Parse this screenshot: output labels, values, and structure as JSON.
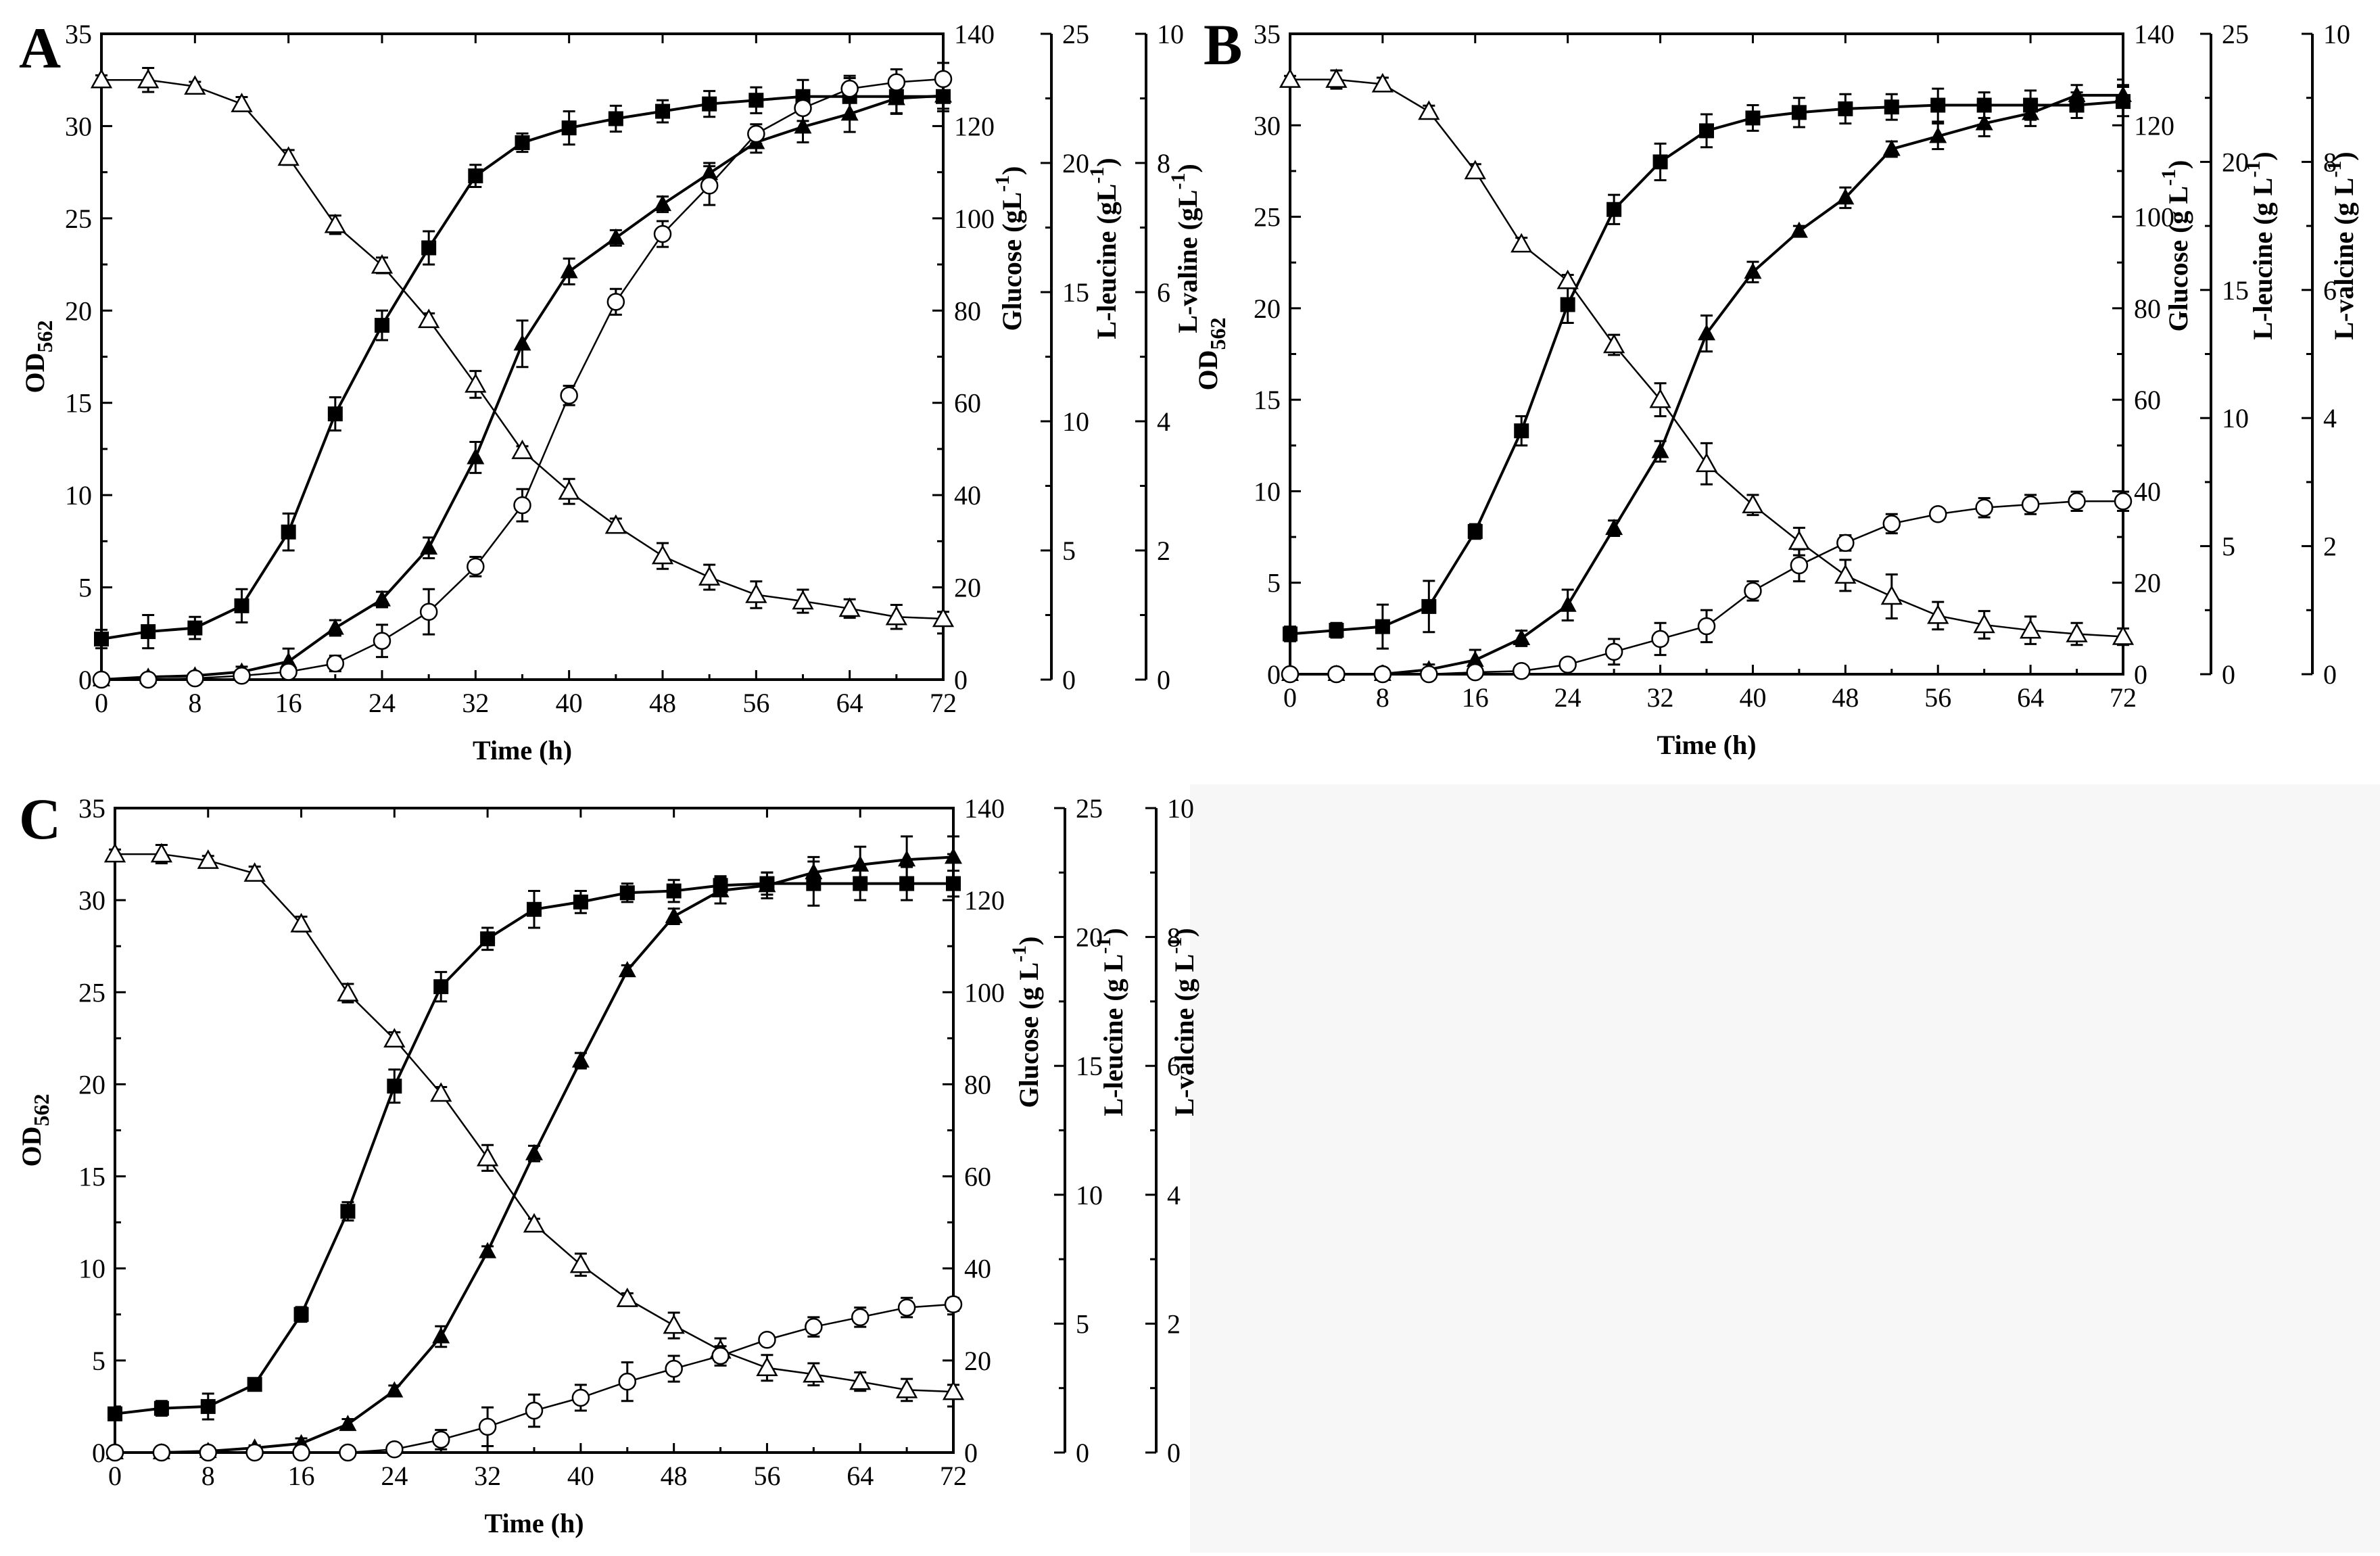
{
  "figure": {
    "empty_panel_color": "#f7f7f7",
    "marker_legend": {
      "od562": "filled-square",
      "glucose": "open-triangle",
      "leucine": "filled-triangle",
      "valine": "open-circle"
    }
  },
  "chart_data": [
    {
      "type": "line",
      "panel": "A",
      "x": [
        0,
        4,
        8,
        12,
        16,
        20,
        24,
        28,
        32,
        36,
        40,
        44,
        48,
        52,
        56,
        60,
        64,
        68,
        72
      ],
      "xlabel": "Time (h)",
      "xlim": [
        0,
        72
      ],
      "xticks": [
        "0",
        "8",
        "16",
        "24",
        "32",
        "40",
        "48",
        "56",
        "64",
        "72"
      ],
      "axes": [
        {
          "id": "od",
          "label": "OD",
          "label_sub": "562",
          "lim": [
            0,
            35
          ],
          "ticks": [
            "0",
            "5",
            "10",
            "15",
            "20",
            "25",
            "30",
            "35"
          ]
        },
        {
          "id": "glucose",
          "label": "Glucose (gL",
          "label_sup": "-1",
          "label_end": ")",
          "lim": [
            0,
            140
          ],
          "ticks": [
            "0",
            "20",
            "40",
            "60",
            "80",
            "100",
            "120",
            "140"
          ]
        },
        {
          "id": "leucine",
          "label": "L-leucine (gL",
          "label_sup": "-1",
          "label_end": ")",
          "lim": [
            0,
            25
          ],
          "ticks": [
            "0",
            "5",
            "10",
            "15",
            "20",
            "25"
          ]
        },
        {
          "id": "valine",
          "label": "L-valine (gL",
          "label_sup": "-1",
          "label_end": ")",
          "lim": [
            0,
            10
          ],
          "ticks": [
            "0",
            "2",
            "4",
            "6",
            "8",
            "10"
          ]
        }
      ],
      "series": [
        {
          "name": "OD562",
          "axis": "od",
          "marker": "filled-square",
          "values": [
            2.2,
            2.6,
            2.8,
            4.0,
            8.0,
            14.4,
            19.2,
            23.4,
            27.3,
            29.1,
            29.9,
            30.4,
            30.8,
            31.2,
            31.4,
            31.6,
            31.6,
            31.6,
            31.6
          ],
          "errors": [
            0.5,
            0.9,
            0.6,
            0.9,
            1.0,
            0.9,
            0.8,
            0.9,
            0.6,
            0.5,
            0.9,
            0.7,
            0.6,
            0.7,
            0.7,
            0.9,
            1.0,
            0.9,
            0.8
          ]
        },
        {
          "name": "Glucose",
          "axis": "glucose",
          "marker": "open-triangle",
          "values": [
            130.0,
            130.0,
            128.6,
            124.8,
            113.2,
            98.6,
            89.8,
            78.0,
            64.0,
            49.6,
            40.8,
            33.4,
            26.8,
            22.2,
            18.4,
            17.0,
            15.4,
            13.6,
            13.2
          ],
          "errors": [
            1.0,
            2.6,
            1.0,
            1.5,
            1.6,
            2.0,
            1.7,
            1.4,
            2.9,
            1.0,
            2.7,
            1.5,
            2.8,
            2.7,
            2.9,
            2.5,
            2.0,
            2.6,
            1.5
          ]
        },
        {
          "name": "L-leucine",
          "axis": "leucine",
          "marker": "filled-triangle",
          "values": [
            0.0,
            0.1,
            0.15,
            0.3,
            0.7,
            2.0,
            3.1,
            5.1,
            8.6,
            13.0,
            15.8,
            17.1,
            18.4,
            19.6,
            20.8,
            21.4,
            21.9,
            22.5,
            22.6
          ],
          "errors": [
            0.05,
            0.05,
            0.1,
            0.2,
            0.5,
            0.3,
            0.3,
            0.4,
            0.6,
            0.9,
            0.5,
            0.3,
            0.3,
            0.4,
            0.4,
            0.6,
            0.7,
            0.6,
            0.5
          ]
        },
        {
          "name": "L-valine",
          "axis": "valine",
          "marker": "open-circle",
          "values": [
            0.0,
            0.0,
            0.02,
            0.06,
            0.12,
            0.25,
            0.6,
            1.05,
            1.75,
            2.7,
            4.4,
            5.85,
            6.9,
            7.65,
            8.45,
            8.85,
            9.15,
            9.25,
            9.3
          ],
          "errors": [
            0.02,
            0.02,
            0.03,
            0.05,
            0.08,
            0.12,
            0.25,
            0.35,
            0.15,
            0.25,
            0.15,
            0.2,
            0.2,
            0.3,
            0.15,
            0.2,
            0.2,
            0.2,
            0.25
          ]
        }
      ]
    },
    {
      "type": "line",
      "panel": "B",
      "x": [
        0,
        4,
        8,
        12,
        16,
        20,
        24,
        28,
        32,
        36,
        40,
        44,
        48,
        52,
        56,
        60,
        64,
        68,
        72
      ],
      "xlabel": "Time (h)",
      "xlim": [
        0,
        72
      ],
      "xticks": [
        "0",
        "8",
        "16",
        "24",
        "32",
        "40",
        "48",
        "56",
        "64",
        "72"
      ],
      "axes": [
        {
          "id": "od",
          "label": "OD",
          "label_sub": "562",
          "lim": [
            0,
            35
          ],
          "ticks": [
            "0",
            "5",
            "10",
            "15",
            "20",
            "25",
            "30",
            "35"
          ]
        },
        {
          "id": "glucose",
          "label": "Glucose (g L",
          "label_sup": "-1",
          "label_end": ")",
          "lim": [
            0,
            140
          ],
          "ticks": [
            "0",
            "20",
            "40",
            "60",
            "80",
            "100",
            "120",
            "140"
          ]
        },
        {
          "id": "leucine",
          "label": "L-leucine (g L",
          "label_sup": "-1",
          "label_end": ")",
          "lim": [
            0,
            25
          ],
          "ticks": [
            "0",
            "5",
            "10",
            "15",
            "20",
            "25"
          ]
        },
        {
          "id": "valine",
          "label": "L-valcine (g L",
          "label_sup": "-1",
          "label_end": ")",
          "lim": [
            0,
            10
          ],
          "ticks": [
            "0",
            "2",
            "4",
            "6",
            "8",
            "10"
          ]
        }
      ],
      "series": [
        {
          "name": "OD562",
          "axis": "od",
          "marker": "filled-square",
          "values": [
            2.2,
            2.4,
            2.6,
            3.7,
            7.8,
            13.3,
            20.2,
            25.4,
            28.0,
            29.7,
            30.4,
            30.7,
            30.9,
            31.0,
            31.1,
            31.1,
            31.1,
            31.1,
            31.3
          ],
          "errors": [
            0.4,
            0.4,
            1.2,
            1.4,
            0.4,
            0.8,
            1.0,
            0.8,
            1.0,
            0.9,
            0.7,
            0.8,
            0.8,
            0.7,
            0.9,
            0.7,
            0.8,
            0.7,
            0.8
          ]
        },
        {
          "name": "Glucose",
          "axis": "glucose",
          "marker": "open-triangle",
          "values": [
            130.0,
            130.0,
            129.0,
            123.0,
            110.0,
            94.0,
            86.0,
            72.0,
            60.0,
            46.0,
            37.0,
            29.0,
            21.6,
            17.0,
            12.8,
            10.8,
            9.6,
            8.8,
            8.2
          ],
          "errors": [
            0.8,
            2.0,
            1.4,
            1.3,
            1.5,
            1.4,
            1.3,
            2.2,
            3.6,
            4.5,
            2.2,
            3.0,
            3.4,
            4.8,
            3.0,
            3.0,
            3.0,
            2.4,
            1.8
          ]
        },
        {
          "name": "L-leucine",
          "axis": "leucine",
          "marker": "filled-triangle",
          "values": [
            0.0,
            0.0,
            0.0,
            0.18,
            0.55,
            1.4,
            2.7,
            5.7,
            8.7,
            13.3,
            15.7,
            17.3,
            18.6,
            20.5,
            21.0,
            21.5,
            21.9,
            22.6,
            22.6
          ],
          "errors": [
            0.05,
            0.05,
            0.05,
            0.2,
            0.4,
            0.3,
            0.6,
            0.3,
            0.4,
            0.7,
            0.4,
            0.2,
            0.4,
            0.3,
            0.5,
            0.5,
            0.5,
            0.4,
            0.4
          ]
        },
        {
          "name": "L-valine",
          "axis": "valine",
          "marker": "open-circle",
          "values": [
            0.0,
            0.0,
            0.0,
            0.0,
            0.03,
            0.05,
            0.15,
            0.35,
            0.55,
            0.75,
            1.3,
            1.7,
            2.05,
            2.35,
            2.5,
            2.6,
            2.65,
            2.7,
            2.7
          ],
          "errors": [
            0.03,
            0.03,
            0.03,
            0.03,
            0.03,
            0.04,
            0.08,
            0.2,
            0.25,
            0.25,
            0.15,
            0.25,
            0.12,
            0.15,
            0.06,
            0.15,
            0.15,
            0.15,
            0.15
          ]
        }
      ]
    },
    {
      "type": "line",
      "panel": "C",
      "x": [
        0,
        4,
        8,
        12,
        16,
        20,
        24,
        28,
        32,
        36,
        40,
        44,
        48,
        52,
        56,
        60,
        64,
        68,
        72
      ],
      "xlabel": "Time (h)",
      "xlim": [
        0,
        72
      ],
      "xticks": [
        "0",
        "8",
        "16",
        "24",
        "32",
        "40",
        "48",
        "56",
        "64",
        "72"
      ],
      "axes": [
        {
          "id": "od",
          "label": "OD",
          "label_sub": "562",
          "lim": [
            0,
            35
          ],
          "ticks": [
            "0",
            "5",
            "10",
            "15",
            "20",
            "25",
            "30",
            "35"
          ]
        },
        {
          "id": "glucose",
          "label": "Glucose (g L",
          "label_sup": "-1",
          "label_end": ")",
          "lim": [
            0,
            140
          ],
          "ticks": [
            "0",
            "20",
            "40",
            "60",
            "80",
            "100",
            "120",
            "140"
          ]
        },
        {
          "id": "leucine",
          "label": "L-leucine (g L",
          "label_sup": "-1",
          "label_end": ")",
          "lim": [
            0,
            25
          ],
          "ticks": [
            "0",
            "5",
            "10",
            "15",
            "20",
            "25"
          ]
        },
        {
          "id": "valine",
          "label": "L-valcine (g L",
          "label_sup": "-1",
          "label_end": ")",
          "lim": [
            0,
            10
          ],
          "ticks": [
            "0",
            "2",
            "4",
            "6",
            "8",
            "10"
          ]
        }
      ],
      "series": [
        {
          "name": "OD562",
          "axis": "od",
          "marker": "filled-square",
          "values": [
            2.1,
            2.4,
            2.5,
            3.7,
            7.5,
            13.1,
            19.9,
            25.3,
            27.9,
            29.5,
            29.9,
            30.4,
            30.5,
            30.8,
            30.9,
            30.9,
            30.9,
            30.9,
            30.9
          ],
          "errors": [
            0.3,
            0.4,
            0.7,
            0.2,
            0.4,
            0.5,
            0.9,
            0.8,
            0.6,
            1.0,
            0.6,
            0.5,
            0.6,
            0.5,
            0.6,
            1.2,
            0.9,
            0.9,
            0.7
          ]
        },
        {
          "name": "Glucose",
          "axis": "glucose",
          "marker": "open-triangle",
          "values": [
            130.0,
            130.0,
            128.6,
            125.8,
            114.8,
            99.8,
            89.8,
            78.0,
            64.0,
            49.6,
            40.8,
            33.4,
            27.6,
            22.2,
            18.4,
            17.0,
            15.4,
            13.6,
            13.2
          ],
          "errors": [
            1.0,
            2.0,
            1.0,
            1.5,
            1.6,
            2.0,
            1.5,
            1.4,
            2.8,
            1.2,
            2.4,
            1.2,
            2.8,
            2.6,
            2.8,
            2.4,
            2.0,
            2.4,
            1.5
          ]
        },
        {
          "name": "L-leucine",
          "axis": "leucine",
          "marker": "filled-triangle",
          "values": [
            0.0,
            0.0,
            0.05,
            0.18,
            0.35,
            1.1,
            2.4,
            4.5,
            7.8,
            11.6,
            15.2,
            18.7,
            20.8,
            21.8,
            22.0,
            22.5,
            22.8,
            23.0,
            23.1
          ],
          "errors": [
            0.03,
            0.03,
            0.05,
            0.1,
            0.2,
            0.2,
            0.2,
            0.4,
            0.2,
            0.3,
            0.3,
            0.2,
            0.3,
            0.5,
            0.5,
            0.6,
            0.7,
            0.9,
            0.8
          ]
        },
        {
          "name": "L-valine",
          "axis": "valine",
          "marker": "open-circle",
          "values": [
            0.0,
            0.0,
            0.0,
            0.0,
            0.0,
            0.0,
            0.05,
            0.2,
            0.4,
            0.65,
            0.85,
            1.1,
            1.3,
            1.5,
            1.75,
            1.95,
            2.1,
            2.25,
            2.3
          ],
          "errors": [
            0.02,
            0.02,
            0.02,
            0.02,
            0.02,
            0.02,
            0.05,
            0.15,
            0.3,
            0.25,
            0.2,
            0.3,
            0.2,
            0.15,
            0.08,
            0.15,
            0.15,
            0.15,
            0.1
          ]
        }
      ]
    }
  ]
}
